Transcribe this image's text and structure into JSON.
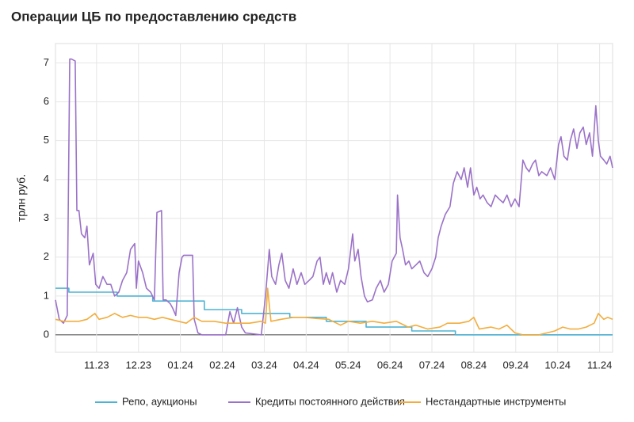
{
  "chart_data": {
    "type": "line",
    "title": "Операции ЦБ по предоставлению средств",
    "ylabel": "трлн руб.",
    "xlim": [
      0.02,
      13.31
    ],
    "ylim": [
      -0.45,
      7.5
    ],
    "xticks": [
      {
        "value": 1,
        "label": "11.23"
      },
      {
        "value": 2,
        "label": "12.23"
      },
      {
        "value": 3,
        "label": "01.24"
      },
      {
        "value": 4,
        "label": "02.24"
      },
      {
        "value": 5,
        "label": "03.24"
      },
      {
        "value": 6,
        "label": "04.24"
      },
      {
        "value": 7,
        "label": "05.24"
      },
      {
        "value": 8,
        "label": "06.24"
      },
      {
        "value": 9,
        "label": "07.24"
      },
      {
        "value": 10,
        "label": "08.24"
      },
      {
        "value": 11,
        "label": "09.24"
      },
      {
        "value": 12,
        "label": "10.24"
      },
      {
        "value": 13,
        "label": "11.24"
      }
    ],
    "yticks": [
      0,
      1,
      2,
      3,
      4,
      5,
      6,
      7
    ],
    "grid": true,
    "series": [
      {
        "name": "Репо, аукционы",
        "color": "#4db3d4",
        "x": [
          0.02,
          0.34,
          0.34,
          1.49,
          1.49,
          2.34,
          2.34,
          3.57,
          3.57,
          4.46,
          4.46,
          5.61,
          5.61,
          6.48,
          6.48,
          7.43,
          7.43,
          8.52,
          8.52,
          9.56,
          9.56,
          13.31
        ],
        "values": [
          1.2,
          1.2,
          1.1,
          1.1,
          1.0,
          1.0,
          0.87,
          0.87,
          0.65,
          0.65,
          0.55,
          0.55,
          0.45,
          0.45,
          0.35,
          0.35,
          0.2,
          0.2,
          0.1,
          0.1,
          0,
          0
        ]
      },
      {
        "name": "Кредиты постоянного действия",
        "color": "#9b72c8",
        "x": [
          0.02,
          0.11,
          0.21,
          0.3,
          0.36,
          0.4,
          0.49,
          0.53,
          0.58,
          0.64,
          0.72,
          0.77,
          0.83,
          0.92,
          0.98,
          1.06,
          1.15,
          1.25,
          1.34,
          1.43,
          1.53,
          1.62,
          1.72,
          1.81,
          1.91,
          1.95,
          2.0,
          2.1,
          2.19,
          2.29,
          2.38,
          2.44,
          2.55,
          2.59,
          2.66,
          2.76,
          2.81,
          2.89,
          2.97,
          3.04,
          3.08,
          3.29,
          3.33,
          3.42,
          3.51,
          4.08,
          4.18,
          4.27,
          4.36,
          4.46,
          4.55,
          4.93,
          5.03,
          5.12,
          5.18,
          5.27,
          5.35,
          5.42,
          5.5,
          5.59,
          5.69,
          5.78,
          5.88,
          5.97,
          6.07,
          6.16,
          6.26,
          6.33,
          6.41,
          6.48,
          6.56,
          6.63,
          6.73,
          6.82,
          6.92,
          7.01,
          7.11,
          7.16,
          7.24,
          7.31,
          7.39,
          7.46,
          7.58,
          7.67,
          7.77,
          7.86,
          7.96,
          8.05,
          8.15,
          8.18,
          8.24,
          8.3,
          8.37,
          8.45,
          8.52,
          8.62,
          8.71,
          8.81,
          8.9,
          9.0,
          9.09,
          9.15,
          9.22,
          9.32,
          9.43,
          9.51,
          9.6,
          9.7,
          9.77,
          9.85,
          9.92,
          10.0,
          10.07,
          10.15,
          10.22,
          10.32,
          10.41,
          10.51,
          10.6,
          10.7,
          10.79,
          10.89,
          10.98,
          11.08,
          11.17,
          11.25,
          11.32,
          11.4,
          11.47,
          11.55,
          11.62,
          11.74,
          11.83,
          11.93,
          12.02,
          12.08,
          12.15,
          12.23,
          12.3,
          12.38,
          12.46,
          12.53,
          12.61,
          12.68,
          12.76,
          12.83,
          12.91,
          12.97,
          13.02,
          13.1,
          13.17,
          13.25,
          13.31
        ],
        "values": [
          0.9,
          0.4,
          0.3,
          0.5,
          7.1,
          7.1,
          7.05,
          3.2,
          3.2,
          2.6,
          2.5,
          2.8,
          1.8,
          2.1,
          1.3,
          1.2,
          1.5,
          1.3,
          1.3,
          1.0,
          1.1,
          1.4,
          1.6,
          2.2,
          2.35,
          1.2,
          1.9,
          1.6,
          1.2,
          1.1,
          0.9,
          3.15,
          3.2,
          0.9,
          0.9,
          0.8,
          0.7,
          0.5,
          1.6,
          2.0,
          2.05,
          2.05,
          0.4,
          0.05,
          0.0,
          0.0,
          0.6,
          0.3,
          0.7,
          0.2,
          0.05,
          0.0,
          1.0,
          2.2,
          1.5,
          1.3,
          1.8,
          2.1,
          1.4,
          1.2,
          1.7,
          1.3,
          1.6,
          1.3,
          1.4,
          1.5,
          1.9,
          2.0,
          1.3,
          1.6,
          1.3,
          1.6,
          1.1,
          1.4,
          1.3,
          1.7,
          2.6,
          1.9,
          2.2,
          1.5,
          1.0,
          0.85,
          0.9,
          1.2,
          1.4,
          1.1,
          1.3,
          1.9,
          2.1,
          3.6,
          2.5,
          2.2,
          1.8,
          1.9,
          1.7,
          1.8,
          1.9,
          1.6,
          1.5,
          1.7,
          2.0,
          2.5,
          2.8,
          3.1,
          3.3,
          3.9,
          4.2,
          4.0,
          4.3,
          3.8,
          4.3,
          3.6,
          3.8,
          3.5,
          3.6,
          3.4,
          3.3,
          3.6,
          3.5,
          3.4,
          3.6,
          3.3,
          3.5,
          3.3,
          4.5,
          4.3,
          4.2,
          4.4,
          4.5,
          4.1,
          4.2,
          4.1,
          4.3,
          4.0,
          4.9,
          5.1,
          4.6,
          4.5,
          5.0,
          5.3,
          4.8,
          5.2,
          5.35,
          4.9,
          5.2,
          4.6,
          5.9,
          5.0,
          4.6,
          4.5,
          4.4,
          4.6,
          4.3
        ]
      },
      {
        "name": "Нестандартные инструменты",
        "color": "#f2ad3d",
        "x": [
          0.02,
          0.21,
          0.58,
          0.77,
          0.96,
          1.06,
          1.25,
          1.43,
          1.62,
          1.81,
          2.0,
          2.19,
          2.38,
          2.57,
          2.76,
          2.95,
          3.14,
          3.33,
          3.51,
          3.8,
          4.08,
          4.36,
          4.65,
          4.93,
          5.03,
          5.08,
          5.16,
          5.4,
          5.69,
          5.97,
          6.26,
          6.54,
          6.82,
          7.01,
          7.29,
          7.58,
          7.86,
          8.15,
          8.43,
          8.62,
          8.9,
          9.19,
          9.37,
          9.66,
          9.88,
          10.0,
          10.13,
          10.41,
          10.6,
          10.79,
          10.98,
          11.17,
          11.55,
          11.74,
          11.93,
          12.12,
          12.3,
          12.49,
          12.68,
          12.87,
          12.97,
          13.1,
          13.19,
          13.31
        ],
        "values": [
          0.4,
          0.35,
          0.35,
          0.4,
          0.55,
          0.4,
          0.45,
          0.55,
          0.45,
          0.5,
          0.45,
          0.45,
          0.4,
          0.45,
          0.4,
          0.35,
          0.3,
          0.45,
          0.35,
          0.35,
          0.3,
          0.3,
          0.3,
          0.35,
          0.3,
          1.2,
          0.35,
          0.4,
          0.45,
          0.45,
          0.42,
          0.4,
          0.25,
          0.35,
          0.3,
          0.35,
          0.3,
          0.35,
          0.2,
          0.25,
          0.15,
          0.2,
          0.3,
          0.3,
          0.35,
          0.45,
          0.15,
          0.2,
          0.15,
          0.25,
          0.05,
          0.0,
          0.0,
          0.05,
          0.1,
          0.2,
          0.15,
          0.15,
          0.2,
          0.3,
          0.55,
          0.4,
          0.45,
          0.4
        ]
      }
    ]
  }
}
